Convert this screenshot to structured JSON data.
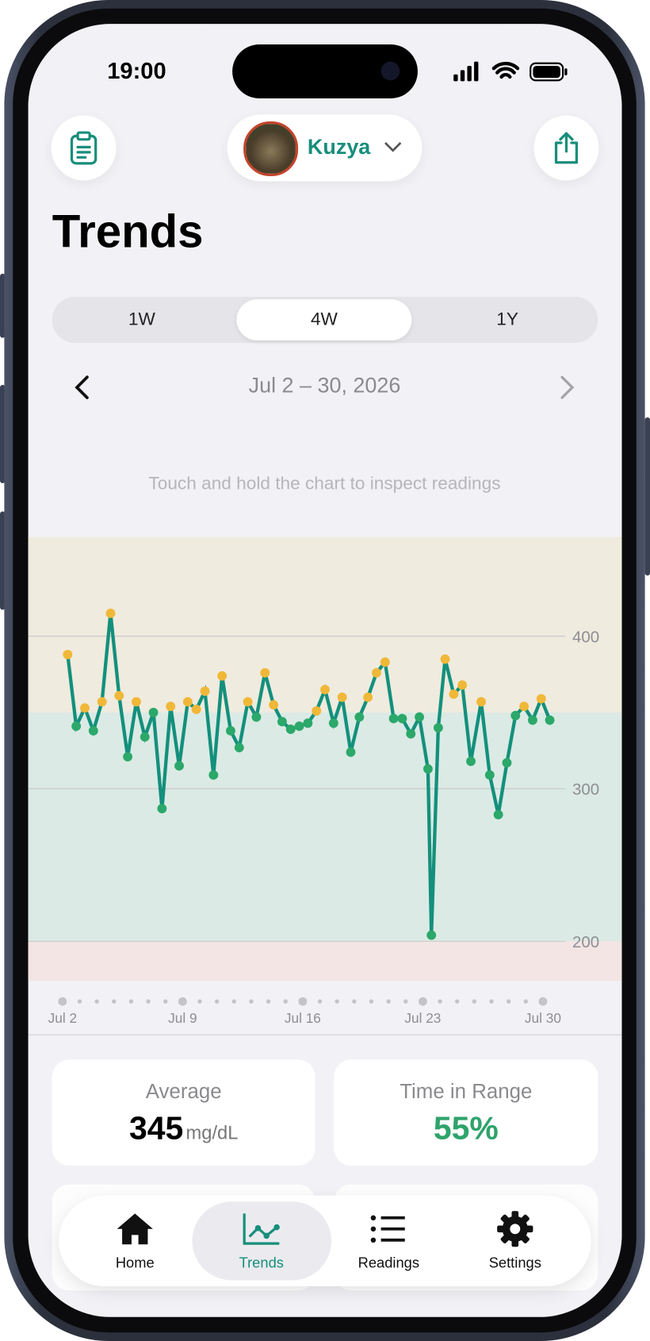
{
  "status_bar": {
    "time": "19:00"
  },
  "header": {
    "pet_name": "Kuzya",
    "title": "Trends"
  },
  "segments": [
    "1W",
    "4W",
    "1Y"
  ],
  "date_range": "Jul 2 – 30, 2026",
  "hint": "Touch and hold the chart to inspect readings",
  "chart_data": {
    "type": "line",
    "x": [
      2.3,
      2.8,
      3.3,
      3.8,
      4.3,
      4.8,
      5.3,
      5.8,
      6.3,
      6.8,
      7.3,
      7.8,
      8.3,
      8.8,
      9.3,
      9.8,
      10.3,
      10.8,
      11.3,
      11.8,
      12.3,
      12.8,
      13.3,
      13.8,
      14.3,
      14.8,
      15.3,
      15.8,
      16.3,
      16.8,
      17.3,
      17.8,
      18.3,
      18.8,
      19.3,
      19.8,
      20.3,
      20.8,
      21.3,
      21.8,
      22.3,
      22.8,
      23.3,
      23.5,
      23.9,
      24.3,
      24.8,
      25.3,
      25.8,
      26.4,
      26.9,
      27.4,
      27.9,
      28.4,
      28.9,
      29.4,
      29.9,
      30.4
    ],
    "values": [
      388,
      341,
      353,
      338,
      357,
      415,
      361,
      321,
      357,
      334,
      350,
      287,
      354,
      315,
      357,
      352,
      364,
      309,
      374,
      338,
      327,
      357,
      347,
      376,
      355,
      344,
      339,
      341,
      343,
      351,
      365,
      343,
      360,
      324,
      347,
      360,
      376,
      383,
      346,
      346,
      336,
      347,
      313,
      204,
      340,
      385,
      362,
      368,
      318,
      357,
      309,
      283,
      317,
      348,
      354,
      345,
      359,
      345
    ],
    "color": "#13907c",
    "high_color": "#f0b838",
    "in_range_color": "#2ba86a",
    "target_range": [
      200,
      350
    ],
    "band_colors": {
      "low": "#f2e5e3",
      "in_range": "#dbeae5",
      "high": "#efebdf"
    },
    "xlim": [
      0,
      34.6
    ],
    "xticks": [
      {
        "value": 2,
        "label": "Jul 2"
      },
      {
        "value": 9,
        "label": "Jul 9"
      },
      {
        "value": 16,
        "label": "Jul 16"
      },
      {
        "value": 23,
        "label": "Jul 23"
      },
      {
        "value": 30,
        "label": "Jul 30"
      }
    ],
    "xminor": [
      3,
      4,
      5,
      6,
      7,
      8,
      10,
      11,
      12,
      13,
      14,
      15,
      17,
      18,
      19,
      20,
      21,
      22,
      24,
      25,
      26,
      27,
      28,
      29
    ],
    "ylim": [
      174,
      465
    ],
    "yticks": [
      200,
      300,
      400
    ],
    "grid": true
  },
  "stats": [
    {
      "label": "Average",
      "value": 345,
      "unit": "mg/dL"
    },
    {
      "label": "Time in Range",
      "value": "55%"
    }
  ],
  "tab_bar": [
    "Home",
    "Trends",
    "Readings",
    "Settings"
  ]
}
